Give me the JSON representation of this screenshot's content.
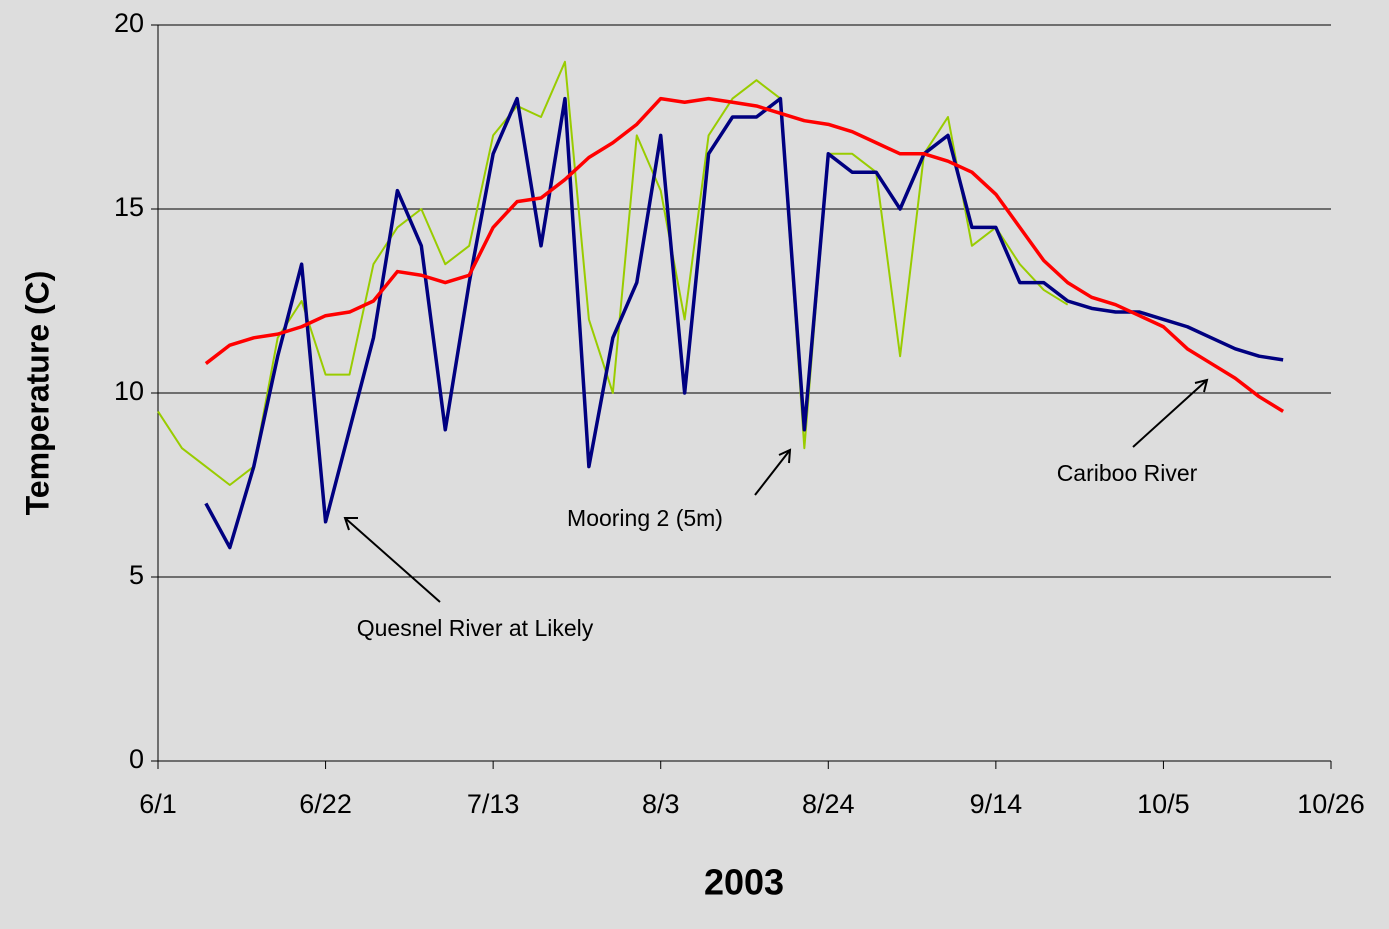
{
  "chart_data": {
    "type": "line",
    "x_label": "2003",
    "y_label": "Temperature (C)",
    "categories": [
      "6/1",
      "6/4",
      "6/7",
      "6/10",
      "6/13",
      "6/16",
      "6/19",
      "6/22",
      "6/25",
      "6/28",
      "7/1",
      "7/4",
      "7/7",
      "7/10",
      "7/13",
      "7/16",
      "7/19",
      "7/22",
      "7/25",
      "7/28",
      "7/31",
      "8/3",
      "8/6",
      "8/9",
      "8/12",
      "8/15",
      "8/18",
      "8/21",
      "8/24",
      "8/27",
      "8/30",
      "9/2",
      "9/5",
      "9/8",
      "9/11",
      "9/14",
      "9/17",
      "9/20",
      "9/23",
      "9/26",
      "9/29",
      "10/2",
      "10/5",
      "10/8",
      "10/11",
      "10/14",
      "10/17",
      "10/20",
      "10/23",
      "10/26"
    ],
    "xticks": [
      "6/1",
      "6/22",
      "7/13",
      "8/3",
      "8/24",
      "9/14",
      "10/5",
      "10/26"
    ],
    "ylim": [
      0,
      20
    ],
    "yticks": [
      0,
      5,
      10,
      15,
      20
    ],
    "grid": true,
    "series": [
      {
        "name": "Quesnel River at Likely",
        "color": "#000080",
        "values": [
          null,
          null,
          7.0,
          5.8,
          8,
          11,
          13.5,
          6.5,
          9,
          11.5,
          15.5,
          14,
          9,
          13,
          16.5,
          18,
          14,
          18,
          8,
          11.5,
          13,
          17,
          10,
          16.5,
          17.5,
          17.5,
          18,
          9,
          16.5,
          16,
          16,
          15,
          16.5,
          17,
          14.5,
          14.5,
          13,
          13,
          12.5,
          12.3,
          12.2,
          12.2,
          12,
          11.8,
          11.5,
          11.2,
          11,
          10.9,
          null,
          null
        ]
      },
      {
        "name": "Mooring 2 (5m)",
        "color": "#99cc00",
        "values": [
          9.5,
          8.5,
          8,
          7.5,
          8,
          11.5,
          12.5,
          10.5,
          10.5,
          13.5,
          14.5,
          15,
          13.5,
          14,
          17,
          17.8,
          17.5,
          19,
          12,
          10,
          17,
          15.5,
          12,
          17,
          18,
          18.5,
          18,
          8.5,
          16.5,
          16.5,
          16,
          11,
          16.5,
          17.5,
          14,
          14.5,
          13.5,
          12.8,
          12.4,
          null,
          null,
          null,
          null,
          null,
          null,
          null,
          null,
          null,
          null,
          null
        ]
      },
      {
        "name": "Cariboo River",
        "color": "#ff0000",
        "values": [
          null,
          null,
          10.8,
          11.3,
          11.5,
          11.6,
          11.8,
          12.1,
          12.2,
          12.5,
          13.3,
          13.2,
          13.0,
          13.2,
          14.5,
          15.2,
          15.3,
          15.8,
          16.4,
          16.8,
          17.3,
          18.0,
          17.9,
          18.0,
          17.9,
          17.8,
          17.6,
          17.4,
          17.3,
          17.1,
          16.8,
          16.5,
          16.5,
          16.3,
          16.0,
          15.4,
          14.5,
          13.6,
          13.0,
          12.6,
          12.4,
          12.1,
          11.8,
          11.2,
          10.8,
          10.4,
          9.9,
          9.5,
          null,
          null
        ]
      }
    ]
  }
}
